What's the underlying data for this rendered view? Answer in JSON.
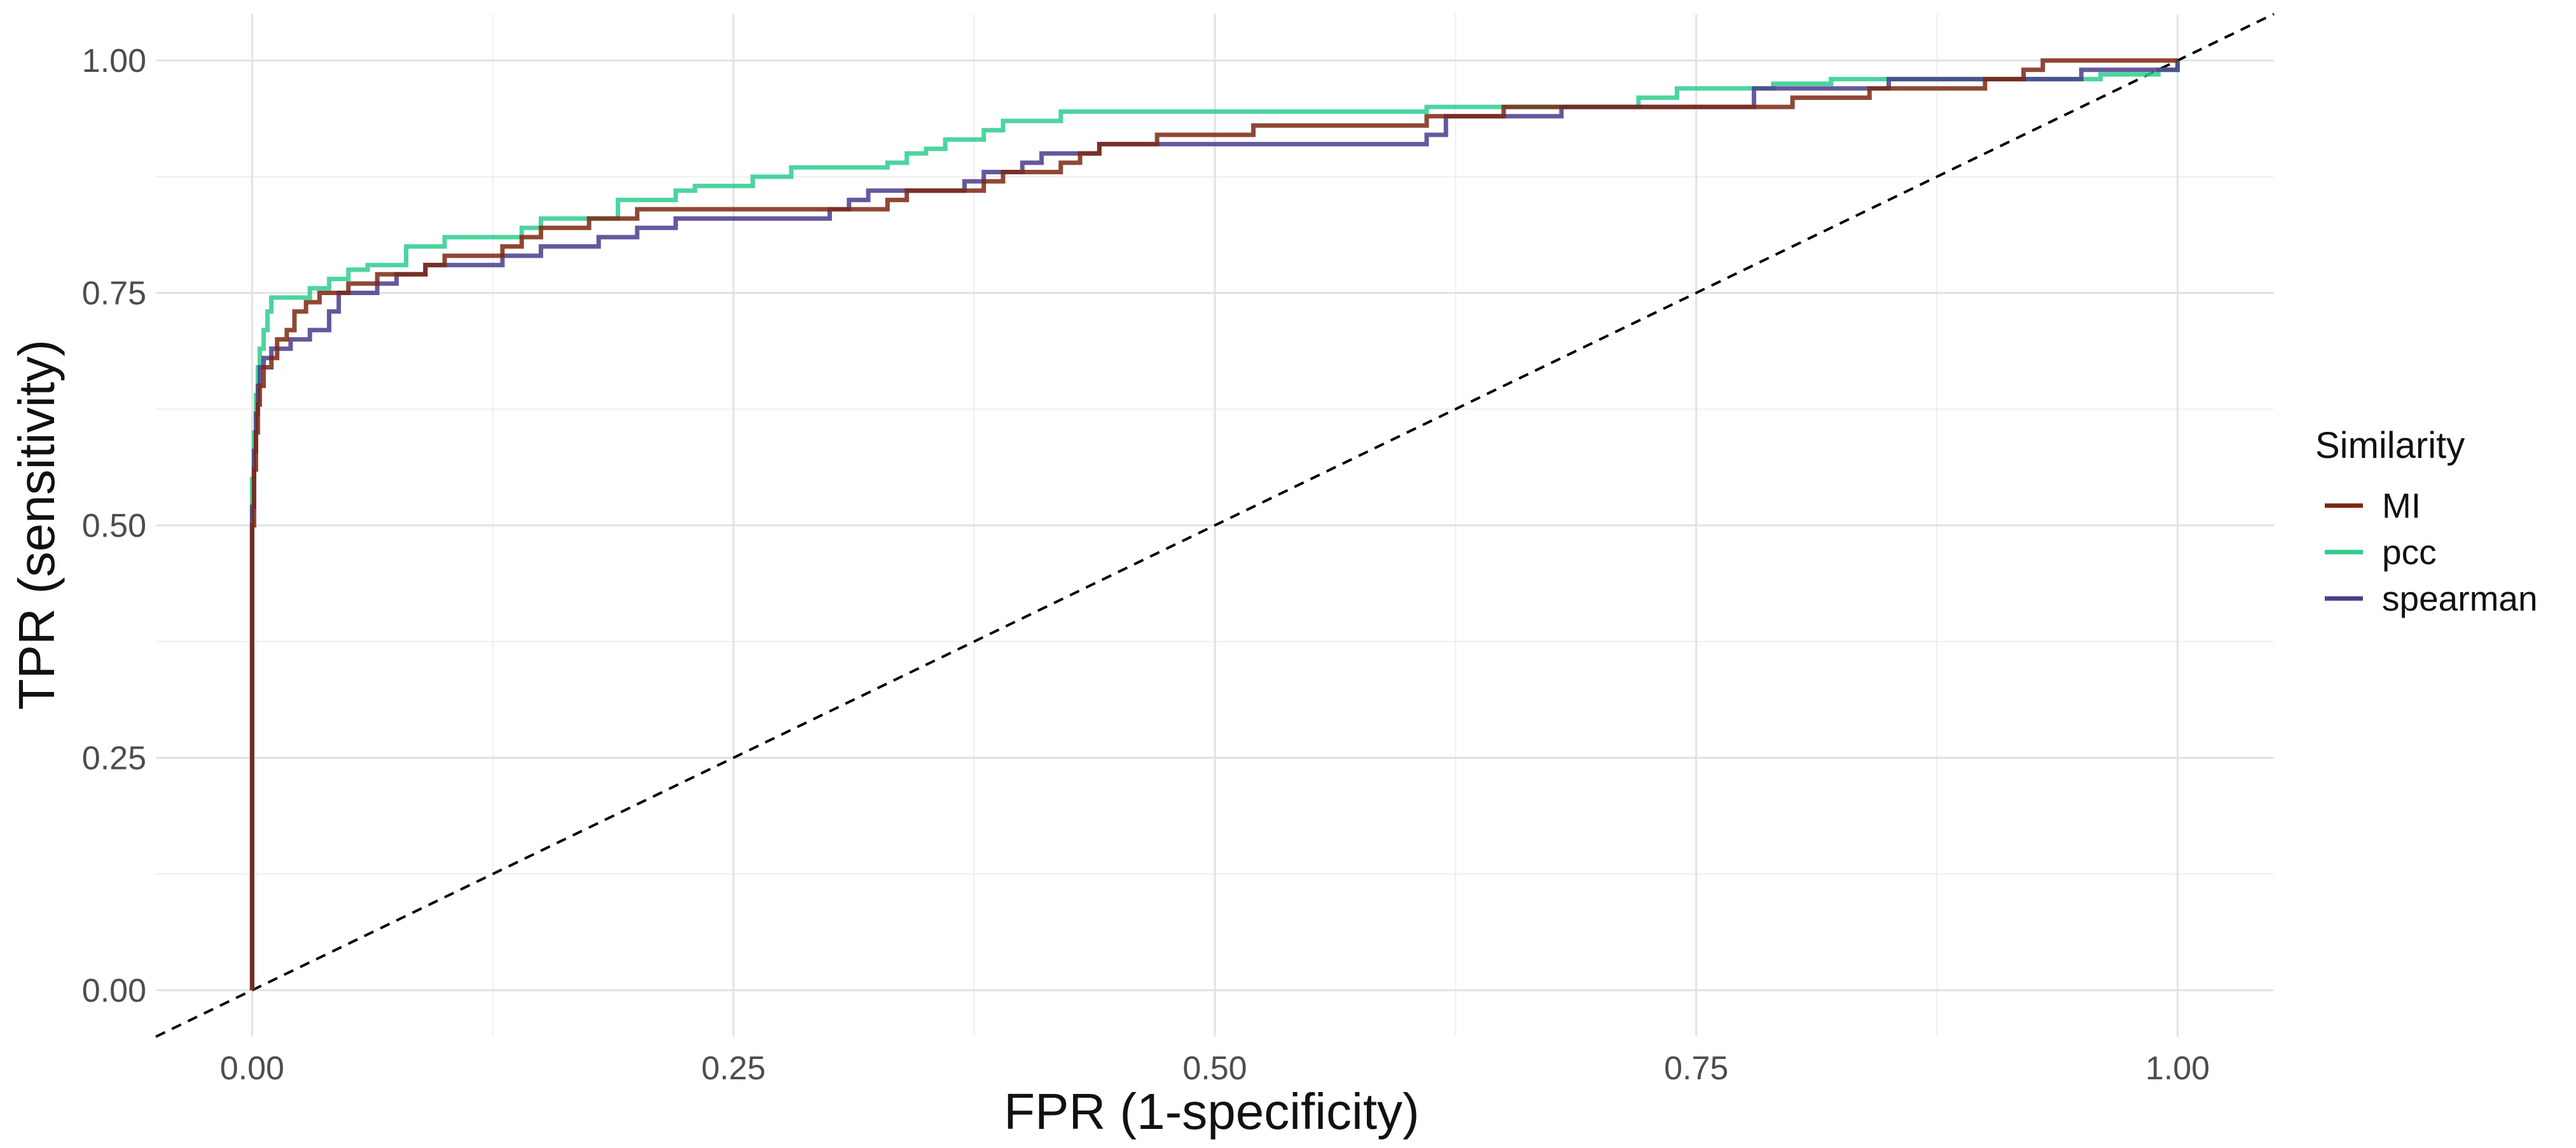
{
  "chart_data": {
    "type": "line",
    "title": "",
    "xlabel": "FPR (1-specificity)",
    "ylabel": "TPR (sensitivity)",
    "xlim": [
      -0.05,
      1.05
    ],
    "ylim": [
      -0.05,
      1.05
    ],
    "x_ticks": [
      0,
      0.25,
      0.5,
      0.75,
      1
    ],
    "x_tick_labels": [
      "0.00",
      "0.25",
      "0.50",
      "0.75",
      "1.00"
    ],
    "y_ticks": [
      0,
      0.25,
      0.5,
      0.75,
      1
    ],
    "y_tick_labels": [
      "0.00",
      "0.25",
      "0.50",
      "0.75",
      "1.00"
    ],
    "grid": true,
    "legend_title": "Similarity",
    "legend_position": "right",
    "reference_line": {
      "style": "dashed",
      "color": "#000000",
      "from": [
        -0.05,
        -0.05
      ],
      "to": [
        1.05,
        1.05
      ]
    },
    "series": [
      {
        "name": "MI",
        "color": "#7B2812",
        "points": [
          [
            0,
            0
          ],
          [
            0,
            0.5
          ],
          [
            0.001,
            0.56
          ],
          [
            0.002,
            0.6
          ],
          [
            0.003,
            0.63
          ],
          [
            0.004,
            0.65
          ],
          [
            0.006,
            0.67
          ],
          [
            0.01,
            0.68
          ],
          [
            0.013,
            0.7
          ],
          [
            0.018,
            0.71
          ],
          [
            0.022,
            0.73
          ],
          [
            0.028,
            0.74
          ],
          [
            0.035,
            0.75
          ],
          [
            0.05,
            0.76
          ],
          [
            0.065,
            0.77
          ],
          [
            0.09,
            0.78
          ],
          [
            0.1,
            0.79
          ],
          [
            0.13,
            0.8
          ],
          [
            0.14,
            0.81
          ],
          [
            0.15,
            0.82
          ],
          [
            0.175,
            0.83
          ],
          [
            0.2,
            0.84
          ],
          [
            0.33,
            0.85
          ],
          [
            0.34,
            0.86
          ],
          [
            0.38,
            0.87
          ],
          [
            0.39,
            0.88
          ],
          [
            0.42,
            0.89
          ],
          [
            0.43,
            0.9
          ],
          [
            0.44,
            0.91
          ],
          [
            0.47,
            0.92
          ],
          [
            0.52,
            0.93
          ],
          [
            0.61,
            0.94
          ],
          [
            0.65,
            0.95
          ],
          [
            0.74,
            0.95
          ],
          [
            0.8,
            0.96
          ],
          [
            0.84,
            0.97
          ],
          [
            0.9,
            0.98
          ],
          [
            0.92,
            0.99
          ],
          [
            0.93,
            1.0
          ],
          [
            1.0,
            1.0
          ]
        ]
      },
      {
        "name": "pcc",
        "color": "#2ECC8E",
        "points": [
          [
            0,
            0
          ],
          [
            0,
            0.55
          ],
          [
            0.001,
            0.6
          ],
          [
            0.002,
            0.64
          ],
          [
            0.003,
            0.67
          ],
          [
            0.004,
            0.69
          ],
          [
            0.006,
            0.71
          ],
          [
            0.008,
            0.73
          ],
          [
            0.01,
            0.745
          ],
          [
            0.03,
            0.755
          ],
          [
            0.04,
            0.765
          ],
          [
            0.05,
            0.775
          ],
          [
            0.06,
            0.78
          ],
          [
            0.08,
            0.8
          ],
          [
            0.1,
            0.81
          ],
          [
            0.14,
            0.82
          ],
          [
            0.15,
            0.83
          ],
          [
            0.19,
            0.85
          ],
          [
            0.22,
            0.86
          ],
          [
            0.23,
            0.865
          ],
          [
            0.26,
            0.875
          ],
          [
            0.28,
            0.885
          ],
          [
            0.33,
            0.89
          ],
          [
            0.34,
            0.9
          ],
          [
            0.35,
            0.905
          ],
          [
            0.36,
            0.915
          ],
          [
            0.38,
            0.925
          ],
          [
            0.39,
            0.935
          ],
          [
            0.42,
            0.945
          ],
          [
            0.58,
            0.945
          ],
          [
            0.61,
            0.95
          ],
          [
            0.72,
            0.96
          ],
          [
            0.74,
            0.97
          ],
          [
            0.79,
            0.975
          ],
          [
            0.82,
            0.98
          ],
          [
            0.96,
            0.985
          ],
          [
            0.99,
            0.99
          ],
          [
            1.0,
            1.0
          ]
        ]
      },
      {
        "name": "spearman",
        "color": "#4A3C8C",
        "points": [
          [
            0,
            0
          ],
          [
            0,
            0.52
          ],
          [
            0.001,
            0.58
          ],
          [
            0.002,
            0.62
          ],
          [
            0.003,
            0.65
          ],
          [
            0.004,
            0.67
          ],
          [
            0.006,
            0.68
          ],
          [
            0.01,
            0.69
          ],
          [
            0.02,
            0.7
          ],
          [
            0.03,
            0.71
          ],
          [
            0.04,
            0.73
          ],
          [
            0.045,
            0.75
          ],
          [
            0.065,
            0.76
          ],
          [
            0.075,
            0.77
          ],
          [
            0.09,
            0.78
          ],
          [
            0.13,
            0.79
          ],
          [
            0.15,
            0.8
          ],
          [
            0.18,
            0.81
          ],
          [
            0.2,
            0.82
          ],
          [
            0.22,
            0.83
          ],
          [
            0.3,
            0.84
          ],
          [
            0.31,
            0.85
          ],
          [
            0.32,
            0.86
          ],
          [
            0.37,
            0.87
          ],
          [
            0.38,
            0.88
          ],
          [
            0.4,
            0.89
          ],
          [
            0.41,
            0.9
          ],
          [
            0.44,
            0.91
          ],
          [
            0.61,
            0.92
          ],
          [
            0.62,
            0.93
          ],
          [
            0.62,
            0.94
          ],
          [
            0.68,
            0.95
          ],
          [
            0.77,
            0.95
          ],
          [
            0.78,
            0.97
          ],
          [
            0.82,
            0.97
          ],
          [
            0.85,
            0.98
          ],
          [
            0.94,
            0.98
          ],
          [
            0.95,
            0.99
          ],
          [
            1.0,
            1.0
          ]
        ]
      }
    ]
  }
}
